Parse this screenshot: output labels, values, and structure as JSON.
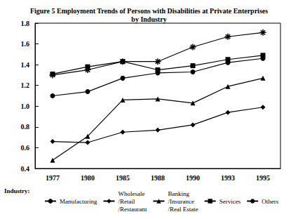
{
  "chart_data": {
    "type": "line",
    "title": "Figure 5 Employment Trends of Persons with Disabilities at Private Enterprises\nby Industry",
    "legend_title": "Industry:",
    "categories": [
      "1977",
      "1980",
      "1985",
      "1988",
      "1990",
      "1993",
      "1995"
    ],
    "ylim": [
      0.4,
      1.8
    ],
    "yticks": [
      0.4,
      0.6,
      0.8,
      {
        "value": 1,
        "label": "1.0"
      },
      1.2,
      1.4,
      1.6,
      1.8
    ],
    "grid": false,
    "legend": "bottom",
    "series": [
      {
        "name": "Manufacturing",
        "color": "#000000",
        "marker": "asterisk",
        "line_style": "solid",
        "values": [
          1.3,
          1.35,
          1.43,
          1.43,
          1.57,
          1.67,
          1.71
        ]
      },
      {
        "name": "Wholesale\n/Retail\n/Restaurant",
        "color": "#000000",
        "marker": "diamond",
        "line_style": "solid",
        "values": [
          0.66,
          0.65,
          0.75,
          0.77,
          0.82,
          0.94,
          0.99
        ]
      },
      {
        "name": "Banking\n/Insurance\n/Real Estate",
        "color": "#000000",
        "marker": "triangle",
        "line_style": "solid",
        "values": [
          0.48,
          0.71,
          1.06,
          1.07,
          1.03,
          1.19,
          1.27
        ]
      },
      {
        "name": "Services",
        "color": "#000000",
        "marker": "square",
        "line_style": "solid",
        "values": [
          1.31,
          1.38,
          1.43,
          1.35,
          1.39,
          1.45,
          1.49
        ]
      },
      {
        "name": "Others",
        "color": "#000000",
        "marker": "circle",
        "line_style": "solid",
        "values": [
          1.1,
          1.14,
          1.27,
          1.32,
          1.33,
          1.42,
          1.46
        ]
      }
    ]
  }
}
